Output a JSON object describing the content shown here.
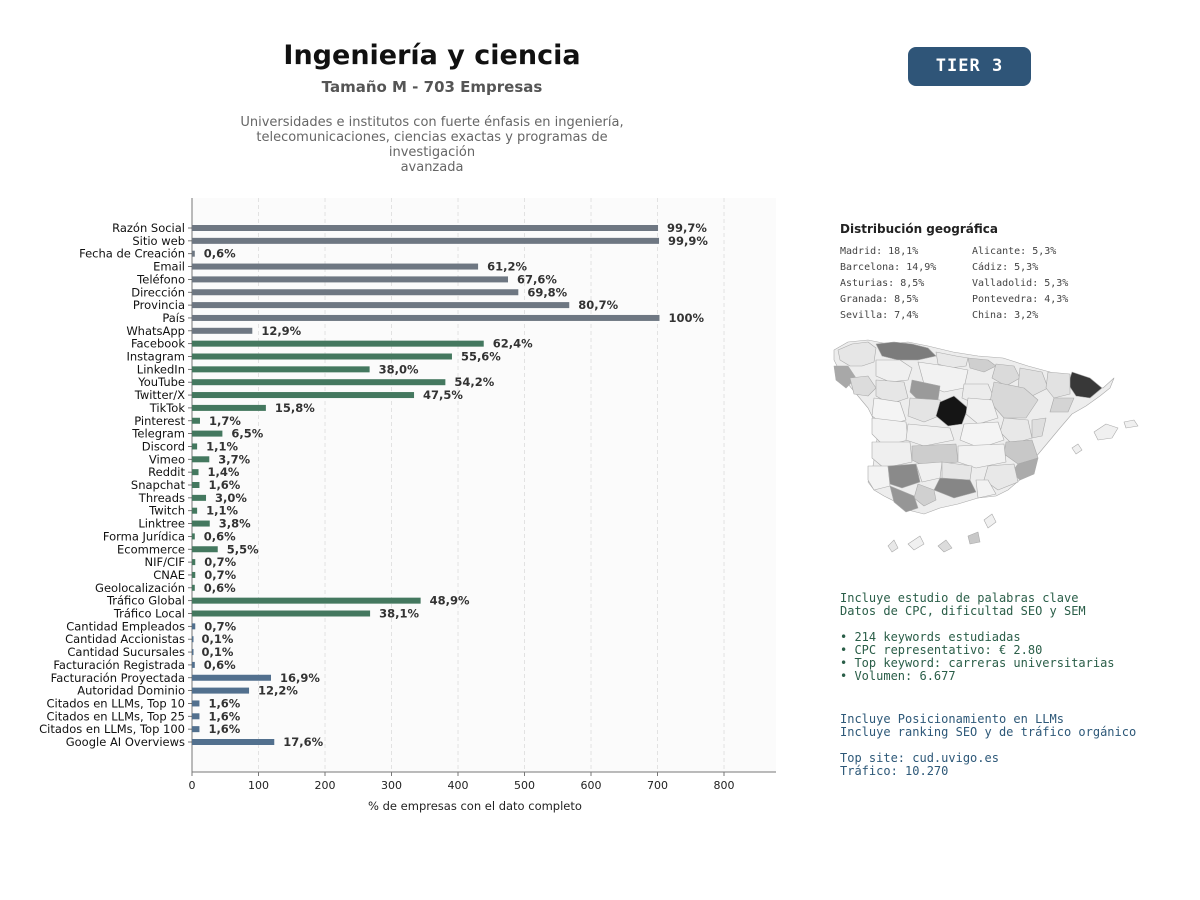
{
  "header": {
    "title": "Ingeniería y ciencia",
    "subtitle": "Tamaño M - 703 Empresas",
    "description_lines": [
      "Universidades e institutos con fuerte énfasis en ingeniería,",
      "telecomunicaciones, ciencias exactas y programas de investigación",
      "avanzada"
    ],
    "tier_badge": "TIER 3"
  },
  "colors": {
    "basic": "#6e7782",
    "social": "#44785f",
    "business": "#52708e",
    "tier": "#2f5578",
    "keywords_text": "#2a5e48",
    "llm_text": "#2d5878"
  },
  "chart_data": {
    "type": "bar",
    "orientation": "horizontal",
    "xlabel": "% de empresas con el dato completo",
    "xlim": [
      0,
      880
    ],
    "xticks": [
      0,
      100,
      200,
      300,
      400,
      500,
      600,
      700,
      800
    ],
    "grid": "x-dashed",
    "categories": [
      "Razón Social",
      "Sitio web",
      "Fecha de Creación",
      "Email",
      "Teléfono",
      "Dirección",
      "Provincia",
      "País",
      "WhatsApp",
      "Facebook",
      "Instagram",
      "LinkedIn",
      "YouTube",
      "Twitter/X",
      "TikTok",
      "Pinterest",
      "Telegram",
      "Discord",
      "Vimeo",
      "Reddit",
      "Snapchat",
      "Threads",
      "Twitch",
      "Linktree",
      "Forma Jurídica",
      "Ecommerce",
      "NIF/CIF",
      "CNAE",
      "Geolocalización",
      "Tráfico Global",
      "Tráfico Local",
      "Cantidad Empleados",
      "Cantidad Accionistas",
      "Cantidad Sucursales",
      "Facturación Registrada",
      "Facturación Proyectada",
      "Autoridad Dominio",
      "Citados en LLMs, Top 10",
      "Citados en LLMs, Top 25",
      "Citados en LLMs, Top 100",
      "Google AI Overviews"
    ],
    "values": [
      700.8,
      702.3,
      4.2,
      430.2,
      475.2,
      490.7,
      567.3,
      703,
      90.7,
      438.7,
      390.9,
      267.1,
      381.0,
      333.9,
      111.1,
      12.0,
      45.7,
      7.7,
      26.0,
      9.8,
      11.2,
      21.1,
      7.7,
      26.7,
      4.2,
      38.7,
      4.9,
      4.9,
      4.2,
      343.8,
      267.8,
      4.9,
      0.7,
      0.7,
      4.2,
      118.8,
      85.8,
      11.2,
      11.2,
      11.2,
      123.7
    ],
    "data_labels": [
      "99,7%",
      "99,9%",
      "0,6%",
      "61,2%",
      "67,6%",
      "69,8%",
      "80,7%",
      "100%",
      "12,9%",
      "62,4%",
      "55,6%",
      "38,0%",
      "54,2%",
      "47,5%",
      "15,8%",
      "1,7%",
      "6,5%",
      "1,1%",
      "3,7%",
      "1,4%",
      "1,6%",
      "3,0%",
      "1,1%",
      "3,8%",
      "0,6%",
      "5,5%",
      "0,7%",
      "0,7%",
      "0,6%",
      "48,9%",
      "38,1%",
      "0,7%",
      "0,1%",
      "0,1%",
      "0,6%",
      "16,9%",
      "12,2%",
      "1,6%",
      "1,6%",
      "1,6%",
      "17,6%"
    ],
    "groups": [
      "basic",
      "basic",
      "basic",
      "basic",
      "basic",
      "basic",
      "basic",
      "basic",
      "basic",
      "social",
      "social",
      "social",
      "social",
      "social",
      "social",
      "social",
      "social",
      "social",
      "social",
      "social",
      "social",
      "social",
      "social",
      "social",
      "social",
      "social",
      "social",
      "social",
      "social",
      "social",
      "social",
      "business",
      "business",
      "business",
      "business",
      "business",
      "business",
      "business",
      "business",
      "business",
      "business"
    ]
  },
  "geo": {
    "title": "Distribución geográfica",
    "left": [
      "Madrid: 18,1%",
      "Barcelona: 14,9%",
      "Asturias: 8,5%",
      "Granada: 8,5%",
      "Sevilla: 7,4%"
    ],
    "right": [
      "Alicante: 5,3%",
      "Cádiz: 5,3%",
      "Valladolid: 5,3%",
      "Pontevedra: 4,3%",
      "China: 3,2%"
    ]
  },
  "keywords": {
    "line1": "Incluye estudio de palabras clave",
    "line2": "Datos de CPC, dificultad SEO y SEM",
    "bullets": [
      "• 214 keywords estudiadas",
      "• CPC representativo: € 2.80",
      "• Top keyword: carreras universitarias",
      "• Volumen: 6.677"
    ]
  },
  "llm": {
    "line1": "Incluye Posicionamiento en LLMs",
    "line2": "Incluye ranking SEO y de tráfico orgánico",
    "top_site": "Top site: cud.uvigo.es",
    "traffic": "Tráfico: 10.270"
  }
}
